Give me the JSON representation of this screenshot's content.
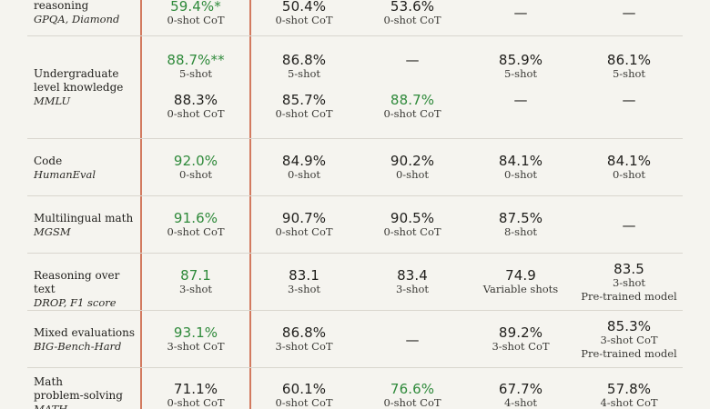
{
  "rows": [
    {
      "benchmark_lines": [
        "reasoning"
      ],
      "benchmark_sub": "GPQA, Diamond",
      "cells": [
        {
          "value": "59.4%*",
          "note": "0-shot CoT",
          "best": true
        },
        {
          "value": "50.4%",
          "note": "0-shot CoT"
        },
        {
          "value": "53.6%",
          "note": "0-shot CoT"
        },
        {
          "value": "—"
        },
        {
          "value": "—"
        }
      ]
    },
    {
      "benchmark_lines": [
        "Undergraduate",
        "level knowledge"
      ],
      "benchmark_sub": "MMLU",
      "cells": [
        {
          "value": "88.7%**",
          "note": "5-shot",
          "best": true,
          "value2": "88.3%",
          "note2": "0-shot CoT"
        },
        {
          "value": "86.8%",
          "note": "5-shot",
          "value2": "85.7%",
          "note2": "0-shot CoT"
        },
        {
          "value": "—",
          "value2": "88.7%",
          "note2": "0-shot CoT",
          "best2": true
        },
        {
          "value": "85.9%",
          "note": "5-shot",
          "value2": "—"
        },
        {
          "value": "86.1%",
          "note": "5-shot",
          "value2": "—"
        }
      ]
    },
    {
      "benchmark_lines": [
        "Code"
      ],
      "benchmark_sub": "HumanEval",
      "cells": [
        {
          "value": "92.0%",
          "note": "0-shot",
          "best": true
        },
        {
          "value": "84.9%",
          "note": "0-shot"
        },
        {
          "value": "90.2%",
          "note": "0-shot"
        },
        {
          "value": "84.1%",
          "note": "0-shot"
        },
        {
          "value": "84.1%",
          "note": "0-shot"
        }
      ]
    },
    {
      "benchmark_lines": [
        "Multilingual math"
      ],
      "benchmark_sub": "MGSM",
      "cells": [
        {
          "value": "91.6%",
          "note": "0-shot CoT",
          "best": true
        },
        {
          "value": "90.7%",
          "note": "0-shot CoT"
        },
        {
          "value": "90.5%",
          "note": "0-shot CoT"
        },
        {
          "value": "87.5%",
          "note": "8-shot"
        },
        {
          "value": "—"
        }
      ]
    },
    {
      "benchmark_lines": [
        "Reasoning over text"
      ],
      "benchmark_sub": "DROP, F1 score",
      "cells": [
        {
          "value": "87.1",
          "note": "3-shot",
          "best": true
        },
        {
          "value": "83.1",
          "note": "3-shot"
        },
        {
          "value": "83.4",
          "note": "3-shot"
        },
        {
          "value": "74.9",
          "note": "Variable shots"
        },
        {
          "value": "83.5",
          "note": "3-shot",
          "note_extra": "Pre-trained model"
        }
      ]
    },
    {
      "benchmark_lines": [
        "Mixed evaluations"
      ],
      "benchmark_sub": "BIG-Bench-Hard",
      "cells": [
        {
          "value": "93.1%",
          "note": "3-shot CoT",
          "best": true
        },
        {
          "value": "86.8%",
          "note": "3-shot CoT"
        },
        {
          "value": "—"
        },
        {
          "value": "89.2%",
          "note": "3-shot CoT"
        },
        {
          "value": "85.3%",
          "note": "3-shot CoT",
          "note_extra": "Pre-trained model"
        }
      ]
    },
    {
      "benchmark_lines": [
        "Math",
        "problem-solving"
      ],
      "benchmark_sub": "MATH",
      "cells": [
        {
          "value": "71.1%",
          "note": "0-shot CoT"
        },
        {
          "value": "60.1%",
          "note": "0-shot CoT"
        },
        {
          "value": "76.6%",
          "note": "0-shot CoT",
          "best": true
        },
        {
          "value": "67.7%",
          "note": "4-shot"
        },
        {
          "value": "57.8%",
          "note": "4-shot CoT"
        }
      ]
    }
  ]
}
